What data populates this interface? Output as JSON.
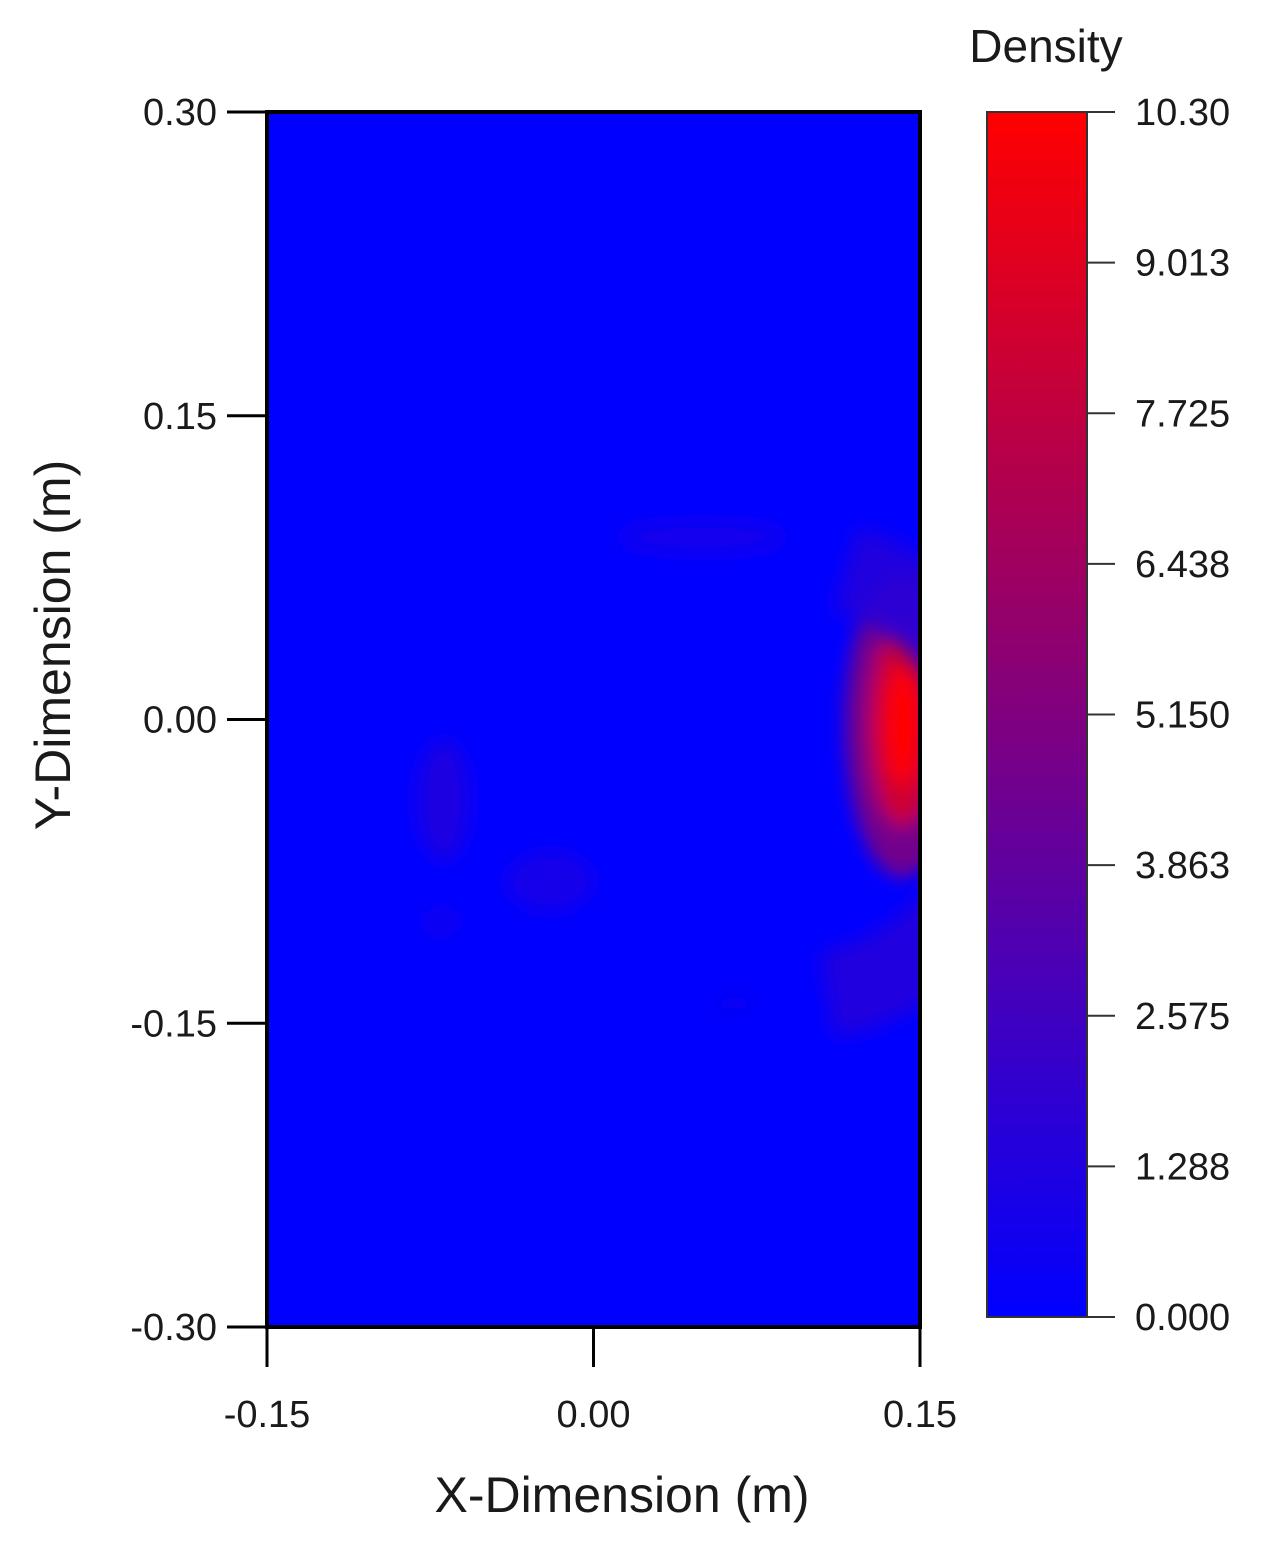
{
  "chart_data": {
    "type": "heatmap",
    "xlabel": "X-Dimension (m)",
    "ylabel": "Y-Dimension (m)",
    "xlim": [
      -0.15,
      0.15
    ],
    "ylim": [
      -0.3,
      0.3
    ],
    "x_ticks": [
      "-0.15",
      "0.00",
      "0.15"
    ],
    "y_ticks": [
      "0.30",
      "0.15",
      "0.00",
      "-0.15",
      "-0.30"
    ],
    "colorbar": {
      "title": "Density",
      "min": 0.0,
      "max": 10.3,
      "ticks": [
        "10.30",
        "9.013",
        "7.725",
        "6.438",
        "5.150",
        "3.863",
        "2.575",
        "1.288",
        "0.000"
      ],
      "low_color": "#0000ff",
      "high_color": "#ff0000"
    },
    "background_value": 0.0,
    "features": [
      {
        "kind": "hotspot",
        "x": 0.142,
        "y": -0.003,
        "rx": 0.012,
        "ry": 0.05,
        "value": 10.3
      },
      {
        "kind": "crescent",
        "x": 0.09,
        "y": -0.03,
        "inner_radius": 0.08,
        "outer_radius": 0.12,
        "value": 1.5
      },
      {
        "kind": "blob",
        "x": -0.069,
        "y": -0.04,
        "rx": 0.012,
        "ry": 0.03,
        "value": 1.2
      },
      {
        "kind": "blob",
        "x": 0.05,
        "y": 0.09,
        "rx": 0.04,
        "ry": 0.008,
        "value": 0.8
      },
      {
        "kind": "blob",
        "x": -0.02,
        "y": -0.08,
        "rx": 0.02,
        "ry": 0.015,
        "value": 0.9
      },
      {
        "kind": "blob",
        "x": -0.07,
        "y": -0.1,
        "rx": 0.008,
        "ry": 0.006,
        "value": 0.8
      },
      {
        "kind": "blob",
        "x": 0.065,
        "y": -0.14,
        "rx": 0.01,
        "ry": 0.004,
        "value": 0.7
      }
    ]
  }
}
